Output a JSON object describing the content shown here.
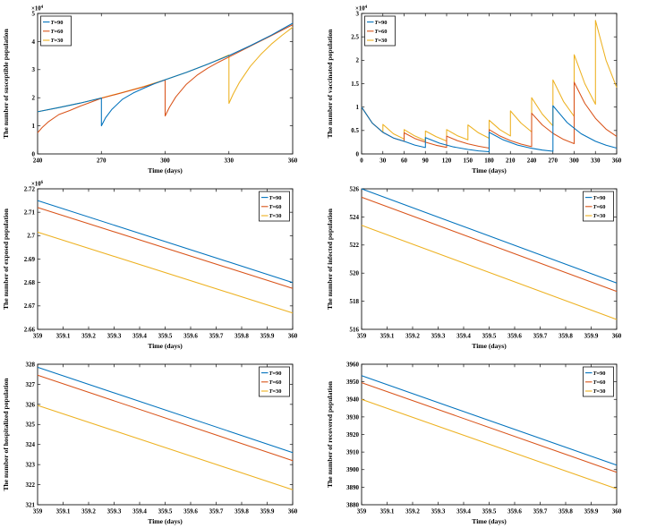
{
  "figure": {
    "background": "#ffffff",
    "axis_color": "#111111",
    "series_colors": {
      "T=90": "#0072BD",
      "T=60": "#D95319",
      "T=30": "#EDB120"
    },
    "legend_labels": [
      "T=90",
      "T=60",
      "T=30"
    ]
  },
  "chart_data": [
    {
      "type": "line",
      "id": "susceptible",
      "ylabel": "The number of susceptible population",
      "xlabel": "Time (days)",
      "exponent_label": "×10^4",
      "xlim": [
        240,
        360
      ],
      "ylim": [
        0,
        5
      ],
      "xticks": [
        240,
        270,
        300,
        330,
        360
      ],
      "xtick_labels": [
        "240",
        "270",
        "300",
        "330",
        "360"
      ],
      "yticks": [
        0,
        1,
        2,
        3,
        4,
        5
      ],
      "ytick_labels": [
        "0",
        "1",
        "2",
        "3",
        "4",
        "5"
      ],
      "legend_position": "top-left",
      "grid": false,
      "series": [
        {
          "name": "T=90",
          "color": "#0072BD",
          "points": [
            [
              240,
              1.5
            ],
            [
              250,
              1.65
            ],
            [
              260,
              1.81
            ],
            [
              270,
              1.99
            ],
            [
              270,
              1.0
            ],
            [
              272,
              1.29
            ],
            [
              275,
              1.59
            ],
            [
              280,
              1.95
            ],
            [
              285,
              2.17
            ],
            [
              290,
              2.34
            ],
            [
              295,
              2.5
            ],
            [
              300,
              2.64
            ],
            [
              310,
              2.9
            ],
            [
              320,
              3.19
            ],
            [
              330,
              3.5
            ],
            [
              340,
              3.85
            ],
            [
              350,
              4.23
            ],
            [
              360,
              4.65
            ]
          ]
        },
        {
          "name": "T=60",
          "color": "#D95319",
          "points": [
            [
              240,
              0.75
            ],
            [
              242,
              0.93
            ],
            [
              245,
              1.14
            ],
            [
              250,
              1.4
            ],
            [
              255,
              1.54
            ],
            [
              260,
              1.7
            ],
            [
              265,
              1.84
            ],
            [
              270,
              1.98
            ],
            [
              280,
              2.18
            ],
            [
              290,
              2.39
            ],
            [
              300,
              2.63
            ],
            [
              300,
              1.35
            ],
            [
              302,
              1.66
            ],
            [
              305,
              2.03
            ],
            [
              310,
              2.48
            ],
            [
              315,
              2.8
            ],
            [
              320,
              3.05
            ],
            [
              325,
              3.26
            ],
            [
              330,
              3.45
            ],
            [
              340,
              3.83
            ],
            [
              350,
              4.21
            ],
            [
              360,
              4.6
            ]
          ]
        },
        {
          "name": "T=30",
          "color": "#EDB120",
          "points": [
            [
              240,
              1.5
            ],
            [
              250,
              1.65
            ],
            [
              260,
              1.81
            ],
            [
              270,
              1.99
            ],
            [
              280,
              2.19
            ],
            [
              290,
              2.4
            ],
            [
              300,
              2.64
            ],
            [
              310,
              2.9
            ],
            [
              320,
              3.19
            ],
            [
              330,
              3.52
            ],
            [
              330,
              1.8
            ],
            [
              332,
              2.13
            ],
            [
              335,
              2.55
            ],
            [
              340,
              3.11
            ],
            [
              345,
              3.54
            ],
            [
              350,
              3.91
            ],
            [
              355,
              4.22
            ],
            [
              360,
              4.51
            ]
          ]
        }
      ]
    },
    {
      "type": "line",
      "id": "vaccinated",
      "ylabel": "The number of vaccinated population",
      "xlabel": "Time (days)",
      "exponent_label": "×10^4",
      "xlim": [
        0,
        360
      ],
      "ylim": [
        0,
        3
      ],
      "xticks": [
        0,
        30,
        60,
        90,
        120,
        150,
        180,
        210,
        240,
        270,
        300,
        330,
        360
      ],
      "xtick_labels": [
        "0",
        "30",
        "60",
        "90",
        "120",
        "150",
        "180",
        "210",
        "240",
        "270",
        "300",
        "330",
        "360"
      ],
      "yticks": [
        0,
        0.5,
        1,
        1.5,
        2,
        2.5,
        3
      ],
      "ytick_labels": [
        "0",
        "0.5",
        "1",
        "1.5",
        "2",
        "2.5",
        "3"
      ],
      "legend_position": "top-left",
      "grid": false,
      "series": [
        {
          "name": "T=90",
          "color": "#0072BD",
          "points": [
            [
              0,
              1.0
            ],
            [
              15,
              0.66
            ],
            [
              30,
              0.46
            ],
            [
              45,
              0.34
            ],
            [
              60,
              0.27
            ],
            [
              75,
              0.19
            ],
            [
              90,
              0.135
            ],
            [
              90,
              0.35
            ],
            [
              110,
              0.23
            ],
            [
              130,
              0.15
            ],
            [
              150,
              0.095
            ],
            [
              165,
              0.065
            ],
            [
              180,
              0.048
            ],
            [
              180,
              0.46
            ],
            [
              200,
              0.3
            ],
            [
              220,
              0.19
            ],
            [
              240,
              0.12
            ],
            [
              255,
              0.082
            ],
            [
              270,
              0.058
            ],
            [
              270,
              1.03
            ],
            [
              290,
              0.67
            ],
            [
              310,
              0.43
            ],
            [
              330,
              0.27
            ],
            [
              345,
              0.185
            ],
            [
              360,
              0.125
            ]
          ]
        },
        {
          "name": "T=60",
          "color": "#D95319",
          "points": [
            [
              0,
              1.0
            ],
            [
              15,
              0.66
            ],
            [
              30,
              0.46
            ],
            [
              45,
              0.34
            ],
            [
              60,
              0.27
            ],
            [
              60,
              0.45
            ],
            [
              75,
              0.33
            ],
            [
              90,
              0.25
            ],
            [
              105,
              0.185
            ],
            [
              120,
              0.14
            ],
            [
              120,
              0.38
            ],
            [
              135,
              0.285
            ],
            [
              150,
              0.215
            ],
            [
              165,
              0.165
            ],
            [
              180,
              0.125
            ],
            [
              180,
              0.52
            ],
            [
              195,
              0.385
            ],
            [
              210,
              0.285
            ],
            [
              225,
              0.21
            ],
            [
              240,
              0.155
            ],
            [
              240,
              0.87
            ],
            [
              255,
              0.62
            ],
            [
              270,
              0.44
            ],
            [
              285,
              0.31
            ],
            [
              300,
              0.22
            ],
            [
              300,
              1.53
            ],
            [
              315,
              1.08
            ],
            [
              330,
              0.76
            ],
            [
              345,
              0.53
            ],
            [
              360,
              0.375
            ]
          ]
        },
        {
          "name": "T=30",
          "color": "#EDB120",
          "points": [
            [
              0,
              1.0
            ],
            [
              15,
              0.66
            ],
            [
              30,
              0.46
            ],
            [
              30,
              0.63
            ],
            [
              45,
              0.43
            ],
            [
              60,
              0.32
            ],
            [
              60,
              0.52
            ],
            [
              75,
              0.385
            ],
            [
              90,
              0.285
            ],
            [
              90,
              0.49
            ],
            [
              105,
              0.37
            ],
            [
              120,
              0.275
            ],
            [
              120,
              0.52
            ],
            [
              135,
              0.39
            ],
            [
              150,
              0.3
            ],
            [
              150,
              0.62
            ],
            [
              165,
              0.45
            ],
            [
              180,
              0.335
            ],
            [
              180,
              0.72
            ],
            [
              195,
              0.52
            ],
            [
              210,
              0.385
            ],
            [
              210,
              0.92
            ],
            [
              225,
              0.66
            ],
            [
              240,
              0.47
            ],
            [
              240,
              1.2
            ],
            [
              255,
              0.85
            ],
            [
              270,
              0.6
            ],
            [
              270,
              1.58
            ],
            [
              285,
              1.12
            ],
            [
              300,
              0.8
            ],
            [
              300,
              2.12
            ],
            [
              315,
              1.5
            ],
            [
              330,
              1.06
            ],
            [
              330,
              2.85
            ],
            [
              345,
              2.0
            ],
            [
              360,
              1.42
            ]
          ]
        }
      ]
    },
    {
      "type": "line",
      "id": "exposed",
      "ylabel": "The number of exposed population",
      "xlabel": "Time (days)",
      "exponent_label": "×10^6",
      "xlim": [
        359,
        360
      ],
      "ylim": [
        2.66,
        2.72
      ],
      "xticks": [
        359,
        359.1,
        359.2,
        359.3,
        359.4,
        359.5,
        359.6,
        359.7,
        359.8,
        359.9,
        360
      ],
      "xtick_labels": [
        "359",
        "359.1",
        "359.2",
        "359.3",
        "359.4",
        "359.5",
        "359.6",
        "359.7",
        "359.8",
        "359.9",
        "360"
      ],
      "yticks": [
        2.66,
        2.67,
        2.68,
        2.69,
        2.7,
        2.71,
        2.72
      ],
      "ytick_labels": [
        "2.66",
        "2.67",
        "2.68",
        "2.69",
        "2.7",
        "2.71",
        "2.72"
      ],
      "legend_position": "top-right",
      "grid": false,
      "series": [
        {
          "name": "T=90",
          "color": "#0072BD",
          "points": [
            [
              359,
              2.715
            ],
            [
              360,
              2.68
            ]
          ]
        },
        {
          "name": "T=60",
          "color": "#D95319",
          "points": [
            [
              359,
              2.712
            ],
            [
              360,
              2.6775
            ]
          ]
        },
        {
          "name": "T=30",
          "color": "#EDB120",
          "points": [
            [
              359,
              2.7015
            ],
            [
              360,
              2.667
            ]
          ]
        }
      ]
    },
    {
      "type": "line",
      "id": "infected",
      "ylabel": "The number of infected population",
      "xlabel": "Time (days)",
      "exponent_label": "",
      "xlim": [
        359,
        360
      ],
      "ylim": [
        516,
        526
      ],
      "xticks": [
        359,
        359.1,
        359.2,
        359.3,
        359.4,
        359.5,
        359.6,
        359.7,
        359.8,
        359.9,
        360
      ],
      "xtick_labels": [
        "359",
        "359.1",
        "359.2",
        "359.3",
        "359.4",
        "359.5",
        "359.6",
        "359.7",
        "359.8",
        "359.9",
        "360"
      ],
      "yticks": [
        516,
        518,
        520,
        522,
        524,
        526
      ],
      "ytick_labels": [
        "516",
        "518",
        "520",
        "522",
        "524",
        "526"
      ],
      "legend_position": "top-right",
      "grid": false,
      "series": [
        {
          "name": "T=90",
          "color": "#0072BD",
          "points": [
            [
              359,
              526.0
            ],
            [
              360,
              519.3
            ]
          ]
        },
        {
          "name": "T=60",
          "color": "#D95319",
          "points": [
            [
              359,
              525.4
            ],
            [
              360,
              518.7
            ]
          ]
        },
        {
          "name": "T=30",
          "color": "#EDB120",
          "points": [
            [
              359,
              523.4
            ],
            [
              360,
              516.7
            ]
          ]
        }
      ]
    },
    {
      "type": "line",
      "id": "hospitalized",
      "ylabel": "The number of hospitalized population",
      "xlabel": "Time (days)",
      "exponent_label": "",
      "xlim": [
        359,
        360
      ],
      "ylim": [
        321,
        328
      ],
      "xticks": [
        359,
        359.1,
        359.2,
        359.3,
        359.4,
        359.5,
        359.6,
        359.7,
        359.8,
        359.9,
        360
      ],
      "xtick_labels": [
        "359",
        "359.1",
        "359.2",
        "359.3",
        "359.4",
        "359.5",
        "359.6",
        "359.7",
        "359.8",
        "359.9",
        "360"
      ],
      "yticks": [
        321,
        322,
        323,
        324,
        325,
        326,
        327,
        328
      ],
      "ytick_labels": [
        "321",
        "322",
        "323",
        "324",
        "325",
        "326",
        "327",
        "328"
      ],
      "legend_position": "top-right",
      "grid": false,
      "series": [
        {
          "name": "T=90",
          "color": "#0072BD",
          "points": [
            [
              359,
              327.85
            ],
            [
              360,
              323.6
            ]
          ]
        },
        {
          "name": "T=60",
          "color": "#D95319",
          "points": [
            [
              359,
              327.45
            ],
            [
              360,
              323.2
            ]
          ]
        },
        {
          "name": "T=30",
          "color": "#EDB120",
          "points": [
            [
              359,
              325.95
            ],
            [
              360,
              321.75
            ]
          ]
        }
      ]
    },
    {
      "type": "line",
      "id": "recovered",
      "ylabel": "The number of recovered population",
      "xlabel": "Time (days)",
      "exponent_label": "",
      "xlim": [
        359,
        360
      ],
      "ylim": [
        3880,
        3960
      ],
      "xticks": [
        359,
        359.1,
        359.2,
        359.3,
        359.4,
        359.5,
        359.6,
        359.7,
        359.8,
        359.9,
        360
      ],
      "xtick_labels": [
        "359",
        "359.1",
        "359.2",
        "359.3",
        "359.4",
        "359.5",
        "359.6",
        "359.7",
        "359.8",
        "359.9",
        "360"
      ],
      "yticks": [
        3880,
        3890,
        3900,
        3910,
        3920,
        3930,
        3940,
        3950,
        3960
      ],
      "ytick_labels": [
        "3880",
        "3890",
        "3900",
        "3910",
        "3920",
        "3930",
        "3940",
        "3950",
        "3960"
      ],
      "legend_position": "top-right",
      "grid": false,
      "series": [
        {
          "name": "T=90",
          "color": "#0072BD",
          "points": [
            [
              359,
              3953.5
            ],
            [
              360,
              3902.5
            ]
          ]
        },
        {
          "name": "T=60",
          "color": "#D95319",
          "points": [
            [
              359,
              3949.5
            ],
            [
              360,
              3898.5
            ]
          ]
        },
        {
          "name": "T=30",
          "color": "#EDB120",
          "points": [
            [
              359,
              3940
            ],
            [
              360,
              3889
            ]
          ]
        }
      ]
    }
  ]
}
